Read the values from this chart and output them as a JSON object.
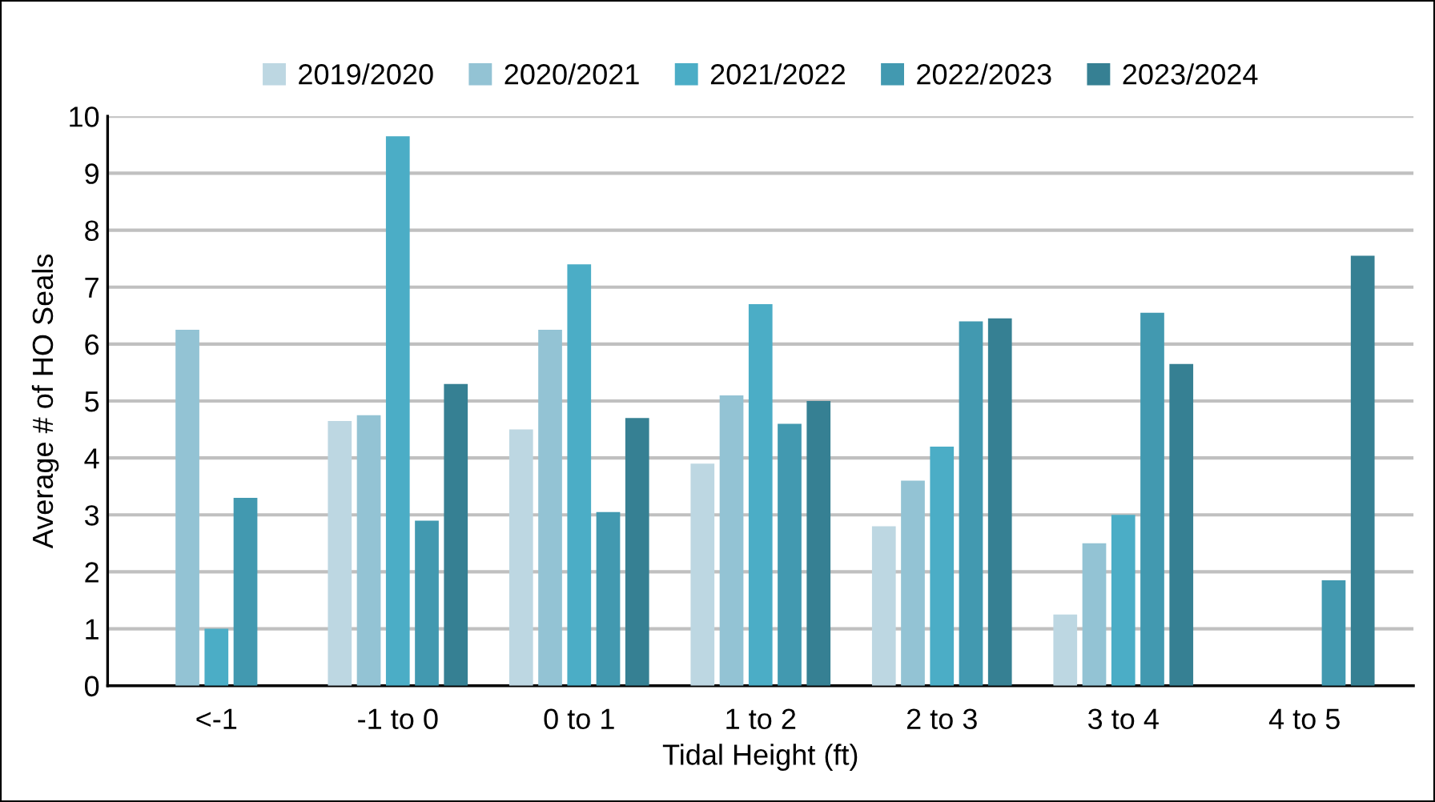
{
  "chart_data": {
    "type": "bar",
    "xlabel": "Tidal Height (ft)",
    "ylabel": "Average # of HO Seals",
    "categories": [
      "<-1",
      "-1 to 0",
      "0 to 1",
      "1 to 2",
      "2 to 3",
      "3 to 4",
      "4 to 5"
    ],
    "series": [
      {
        "name": "2019/2020",
        "color": "#bdd7e2",
        "values": [
          null,
          4.65,
          4.5,
          3.9,
          2.8,
          1.25,
          null
        ]
      },
      {
        "name": "2020/2021",
        "color": "#93c3d4",
        "values": [
          6.25,
          4.75,
          6.25,
          5.1,
          3.6,
          2.5,
          null
        ]
      },
      {
        "name": "2021/2022",
        "color": "#4badc6",
        "values": [
          1.0,
          9.65,
          7.4,
          6.7,
          4.2,
          3.0,
          null
        ]
      },
      {
        "name": "2022/2023",
        "color": "#4299b0",
        "values": [
          3.3,
          2.9,
          3.05,
          4.6,
          6.4,
          6.55,
          1.85
        ]
      },
      {
        "name": "2023/2024",
        "color": "#368093",
        "values": [
          null,
          5.3,
          4.7,
          5.0,
          6.45,
          5.65,
          7.55
        ]
      }
    ],
    "ylim": [
      0,
      10
    ],
    "yticks": [
      0,
      1,
      2,
      3,
      4,
      5,
      6,
      7,
      8,
      9,
      10
    ],
    "grid": "y",
    "legend": "top"
  }
}
